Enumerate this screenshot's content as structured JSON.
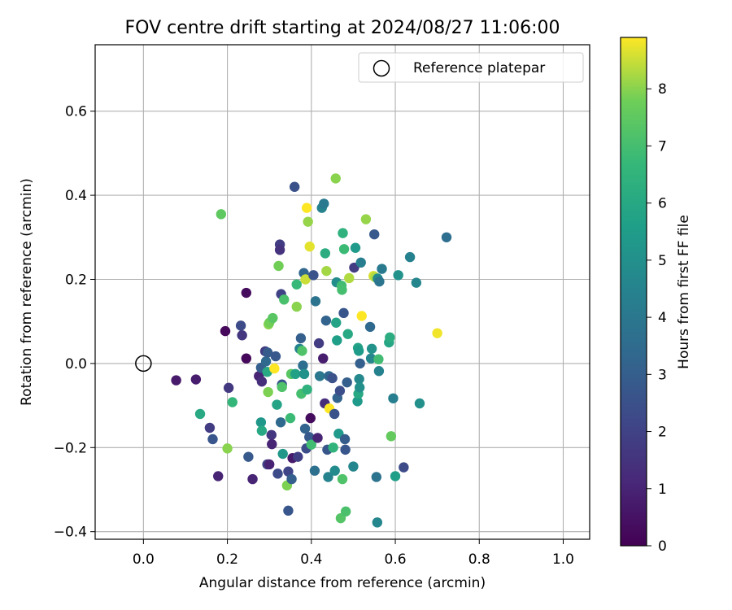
{
  "chart_data": {
    "type": "scatter",
    "title": "FOV centre drift starting at 2024/08/27 11:06:00",
    "xlabel": "Angular distance from reference (arcmin)",
    "ylabel": "Rotation from reference (arcmin)",
    "xlim": [
      -0.115,
      1.063
    ],
    "ylim": [
      -0.418,
      0.758
    ],
    "xticks": [
      0.0,
      0.2,
      0.4,
      0.6,
      0.8,
      1.0
    ],
    "xtick_labels": [
      "0.0",
      "0.2",
      "0.4",
      "0.6",
      "0.8",
      "1.0"
    ],
    "yticks": [
      -0.4,
      -0.2,
      0.0,
      0.2,
      0.4,
      0.6
    ],
    "ytick_labels": [
      "−0.4",
      "−0.2",
      "0.0",
      "0.2",
      "0.4",
      "0.6"
    ],
    "grid": true,
    "legend": {
      "position": "top-right",
      "entries": [
        {
          "label": "Reference platepar",
          "marker": "open-circle"
        }
      ]
    },
    "reference_point": {
      "x": 0.0,
      "y": 0.0
    },
    "colorbar": {
      "label": "Hours from first FF file",
      "colormap": "viridis",
      "range": [
        0,
        8.9
      ],
      "ticks": [
        0,
        1,
        2,
        3,
        4,
        5,
        6,
        7,
        8
      ],
      "tick_labels": [
        "0",
        "1",
        "2",
        "3",
        "4",
        "5",
        "6",
        "7",
        "8"
      ]
    },
    "series": [
      {
        "marker": "filled-circle",
        "points": [
          {
            "x": 0.078,
            "y": -0.04,
            "h": 0.7
          },
          {
            "x": 0.125,
            "y": -0.038,
            "h": 0.8
          },
          {
            "x": 0.135,
            "y": -0.12,
            "h": 6.0
          },
          {
            "x": 0.158,
            "y": -0.153,
            "h": 1.8
          },
          {
            "x": 0.165,
            "y": -0.18,
            "h": 2.7
          },
          {
            "x": 0.178,
            "y": -0.268,
            "h": 1.0
          },
          {
            "x": 0.185,
            "y": 0.355,
            "h": 7.5
          },
          {
            "x": 0.195,
            "y": 0.077,
            "h": 0.2
          },
          {
            "x": 0.2,
            "y": -0.202,
            "h": 8.0
          },
          {
            "x": 0.203,
            "y": -0.058,
            "h": 1.7
          },
          {
            "x": 0.212,
            "y": -0.092,
            "h": 6.6
          },
          {
            "x": 0.232,
            "y": 0.09,
            "h": 2.3
          },
          {
            "x": 0.235,
            "y": 0.067,
            "h": 1.6
          },
          {
            "x": 0.245,
            "y": 0.168,
            "h": 0.3
          },
          {
            "x": 0.245,
            "y": 0.012,
            "h": 0.2
          },
          {
            "x": 0.25,
            "y": -0.222,
            "h": 2.8
          },
          {
            "x": 0.26,
            "y": -0.275,
            "h": 1.0
          },
          {
            "x": 0.275,
            "y": -0.03,
            "h": 1.0
          },
          {
            "x": 0.28,
            "y": -0.01,
            "h": 3.0
          },
          {
            "x": 0.28,
            "y": -0.14,
            "h": 5.3
          },
          {
            "x": 0.282,
            "y": -0.16,
            "h": 6.0
          },
          {
            "x": 0.282,
            "y": -0.043,
            "h": 1.3
          },
          {
            "x": 0.29,
            "y": 0.029,
            "h": 1.8
          },
          {
            "x": 0.292,
            "y": 0.005,
            "h": 3.4
          },
          {
            "x": 0.295,
            "y": -0.02,
            "h": 6.0
          },
          {
            "x": 0.295,
            "y": -0.24,
            "h": 2.1
          },
          {
            "x": 0.296,
            "y": 0.026,
            "h": 2.9
          },
          {
            "x": 0.297,
            "y": -0.068,
            "h": 7.9
          },
          {
            "x": 0.298,
            "y": 0.093,
            "h": 8.0
          },
          {
            "x": 0.3,
            "y": 0.097,
            "h": 7.8
          },
          {
            "x": 0.3,
            "y": -0.24,
            "h": 1.0
          },
          {
            "x": 0.305,
            "y": -0.17,
            "h": 1.6
          },
          {
            "x": 0.306,
            "y": -0.192,
            "h": 1.0
          },
          {
            "x": 0.308,
            "y": 0.108,
            "h": 7.4
          },
          {
            "x": 0.312,
            "y": -0.012,
            "h": 8.9
          },
          {
            "x": 0.315,
            "y": 0.017,
            "h": 2.8
          },
          {
            "x": 0.318,
            "y": -0.098,
            "h": 5.8
          },
          {
            "x": 0.32,
            "y": -0.262,
            "h": 2.3
          },
          {
            "x": 0.322,
            "y": 0.232,
            "h": 7.8
          },
          {
            "x": 0.325,
            "y": 0.283,
            "h": 1.8
          },
          {
            "x": 0.325,
            "y": 0.27,
            "h": 1.5
          },
          {
            "x": 0.327,
            "y": -0.14,
            "h": 3.4
          },
          {
            "x": 0.328,
            "y": 0.165,
            "h": 2.0
          },
          {
            "x": 0.33,
            "y": -0.05,
            "h": 2.6
          },
          {
            "x": 0.33,
            "y": -0.056,
            "h": 7.2
          },
          {
            "x": 0.332,
            "y": -0.215,
            "h": 5.3
          },
          {
            "x": 0.335,
            "y": 0.152,
            "h": 7.1
          },
          {
            "x": 0.342,
            "y": -0.29,
            "h": 7.9
          },
          {
            "x": 0.345,
            "y": -0.35,
            "h": 2.7
          },
          {
            "x": 0.345,
            "y": -0.257,
            "h": 2.1
          },
          {
            "x": 0.35,
            "y": -0.13,
            "h": 6.8
          },
          {
            "x": 0.352,
            "y": -0.025,
            "h": 7.4
          },
          {
            "x": 0.353,
            "y": -0.275,
            "h": 3.0
          },
          {
            "x": 0.355,
            "y": -0.225,
            "h": 0.7
          },
          {
            "x": 0.36,
            "y": 0.42,
            "h": 2.5
          },
          {
            "x": 0.362,
            "y": -0.025,
            "h": 5.7
          },
          {
            "x": 0.365,
            "y": 0.135,
            "h": 8.0
          },
          {
            "x": 0.365,
            "y": 0.188,
            "h": 6.7
          },
          {
            "x": 0.368,
            "y": -0.222,
            "h": 1.9
          },
          {
            "x": 0.372,
            "y": 0.035,
            "h": 4.5
          },
          {
            "x": 0.375,
            "y": 0.06,
            "h": 3.0
          },
          {
            "x": 0.376,
            "y": -0.072,
            "h": 7.0
          },
          {
            "x": 0.378,
            "y": 0.03,
            "h": 7.2
          },
          {
            "x": 0.38,
            "y": -0.005,
            "h": 3.6
          },
          {
            "x": 0.382,
            "y": 0.215,
            "h": 3.3
          },
          {
            "x": 0.383,
            "y": -0.025,
            "h": 5.1
          },
          {
            "x": 0.385,
            "y": -0.155,
            "h": 3.2
          },
          {
            "x": 0.386,
            "y": 0.2,
            "h": 8.5
          },
          {
            "x": 0.388,
            "y": -0.202,
            "h": 2.4
          },
          {
            "x": 0.389,
            "y": 0.37,
            "h": 8.9
          },
          {
            "x": 0.39,
            "y": -0.062,
            "h": 6.4
          },
          {
            "x": 0.392,
            "y": 0.337,
            "h": 8.1
          },
          {
            "x": 0.395,
            "y": -0.175,
            "h": 2.8
          },
          {
            "x": 0.396,
            "y": 0.278,
            "h": 8.7
          },
          {
            "x": 0.398,
            "y": -0.13,
            "h": 0.3
          },
          {
            "x": 0.4,
            "y": -0.193,
            "h": 6.9
          },
          {
            "x": 0.405,
            "y": 0.21,
            "h": 2.6
          },
          {
            "x": 0.408,
            "y": -0.255,
            "h": 3.7
          },
          {
            "x": 0.41,
            "y": 0.148,
            "h": 3.8
          },
          {
            "x": 0.415,
            "y": -0.177,
            "h": 1.0
          },
          {
            "x": 0.418,
            "y": 0.048,
            "h": 1.8
          },
          {
            "x": 0.42,
            "y": -0.03,
            "h": 4.0
          },
          {
            "x": 0.425,
            "y": 0.37,
            "h": 4.5
          },
          {
            "x": 0.428,
            "y": 0.012,
            "h": 0.8
          },
          {
            "x": 0.43,
            "y": 0.38,
            "h": 4.1
          },
          {
            "x": 0.432,
            "y": -0.095,
            "h": 1.3
          },
          {
            "x": 0.433,
            "y": 0.262,
            "h": 6.2
          },
          {
            "x": 0.435,
            "y": 0.102,
            "h": 3.2
          },
          {
            "x": 0.436,
            "y": 0.22,
            "h": 8.2
          },
          {
            "x": 0.438,
            "y": -0.205,
            "h": 2.7
          },
          {
            "x": 0.44,
            "y": -0.27,
            "h": 4.5
          },
          {
            "x": 0.442,
            "y": -0.03,
            "h": 3.3
          },
          {
            "x": 0.443,
            "y": -0.107,
            "h": 8.9
          },
          {
            "x": 0.45,
            "y": -0.035,
            "h": 2.5
          },
          {
            "x": 0.452,
            "y": -0.2,
            "h": 6.5
          },
          {
            "x": 0.455,
            "y": -0.12,
            "h": 2.6
          },
          {
            "x": 0.456,
            "y": -0.255,
            "h": 4.8
          },
          {
            "x": 0.458,
            "y": 0.44,
            "h": 8.0
          },
          {
            "x": 0.459,
            "y": 0.097,
            "h": 5.8
          },
          {
            "x": 0.46,
            "y": 0.193,
            "h": 4.9
          },
          {
            "x": 0.461,
            "y": 0.055,
            "h": 5.6
          },
          {
            "x": 0.462,
            "y": -0.082,
            "h": 3.2
          },
          {
            "x": 0.465,
            "y": -0.167,
            "h": 5.4
          },
          {
            "x": 0.468,
            "y": -0.065,
            "h": 2.4
          },
          {
            "x": 0.47,
            "y": -0.368,
            "h": 7.3
          },
          {
            "x": 0.472,
            "y": 0.185,
            "h": 6.9
          },
          {
            "x": 0.473,
            "y": 0.175,
            "h": 7.0
          },
          {
            "x": 0.474,
            "y": -0.275,
            "h": 7.2
          },
          {
            "x": 0.475,
            "y": 0.31,
            "h": 6.4
          },
          {
            "x": 0.477,
            "y": 0.12,
            "h": 2.7
          },
          {
            "x": 0.478,
            "y": 0.272,
            "h": 6.8
          },
          {
            "x": 0.48,
            "y": -0.18,
            "h": 2.9
          },
          {
            "x": 0.481,
            "y": -0.205,
            "h": 2.7
          },
          {
            "x": 0.482,
            "y": -0.352,
            "h": 7.1
          },
          {
            "x": 0.485,
            "y": -0.045,
            "h": 3.0
          },
          {
            "x": 0.487,
            "y": 0.07,
            "h": 6.0
          },
          {
            "x": 0.49,
            "y": 0.203,
            "h": 8.3
          },
          {
            "x": 0.5,
            "y": -0.245,
            "h": 4.6
          },
          {
            "x": 0.502,
            "y": 0.228,
            "h": 1.8
          },
          {
            "x": 0.505,
            "y": 0.275,
            "h": 5.4
          },
          {
            "x": 0.51,
            "y": -0.09,
            "h": 5.4
          },
          {
            "x": 0.511,
            "y": 0.037,
            "h": 5.8
          },
          {
            "x": 0.512,
            "y": -0.072,
            "h": 6.0
          },
          {
            "x": 0.513,
            "y": 0.03,
            "h": 5.5
          },
          {
            "x": 0.514,
            "y": -0.037,
            "h": 4.7
          },
          {
            "x": 0.515,
            "y": -0.057,
            "h": 5.0
          },
          {
            "x": 0.516,
            "y": 0.0,
            "h": 3.0
          },
          {
            "x": 0.518,
            "y": 0.24,
            "h": 4.3
          },
          {
            "x": 0.52,
            "y": 0.113,
            "h": 8.9
          },
          {
            "x": 0.53,
            "y": 0.343,
            "h": 8.1
          },
          {
            "x": 0.54,
            "y": 0.087,
            "h": 3.4
          },
          {
            "x": 0.542,
            "y": 0.012,
            "h": 4.6
          },
          {
            "x": 0.544,
            "y": 0.035,
            "h": 5.1
          },
          {
            "x": 0.548,
            "y": 0.208,
            "h": 8.6
          },
          {
            "x": 0.55,
            "y": 0.307,
            "h": 2.8
          },
          {
            "x": 0.552,
            "y": 0.205,
            "h": 8.3
          },
          {
            "x": 0.555,
            "y": -0.27,
            "h": 3.8
          },
          {
            "x": 0.557,
            "y": -0.378,
            "h": 4.6
          },
          {
            "x": 0.558,
            "y": 0.202,
            "h": 4.8
          },
          {
            "x": 0.56,
            "y": 0.01,
            "h": 6.9
          },
          {
            "x": 0.561,
            "y": -0.018,
            "h": 4.4
          },
          {
            "x": 0.562,
            "y": 0.195,
            "h": 3.9
          },
          {
            "x": 0.568,
            "y": 0.225,
            "h": 4.1
          },
          {
            "x": 0.585,
            "y": 0.05,
            "h": 5.9
          },
          {
            "x": 0.587,
            "y": 0.062,
            "h": 6.2
          },
          {
            "x": 0.59,
            "y": -0.173,
            "h": 7.6
          },
          {
            "x": 0.595,
            "y": -0.083,
            "h": 4.3
          },
          {
            "x": 0.6,
            "y": -0.268,
            "h": 5.6
          },
          {
            "x": 0.607,
            "y": 0.21,
            "h": 5.1
          },
          {
            "x": 0.62,
            "y": -0.247,
            "h": 2.3
          },
          {
            "x": 0.635,
            "y": 0.253,
            "h": 4.4
          },
          {
            "x": 0.65,
            "y": 0.192,
            "h": 4.6
          },
          {
            "x": 0.658,
            "y": -0.095,
            "h": 5.0
          },
          {
            "x": 0.7,
            "y": 0.072,
            "h": 8.8
          },
          {
            "x": 0.722,
            "y": 0.3,
            "h": 3.6
          }
        ]
      }
    ]
  }
}
